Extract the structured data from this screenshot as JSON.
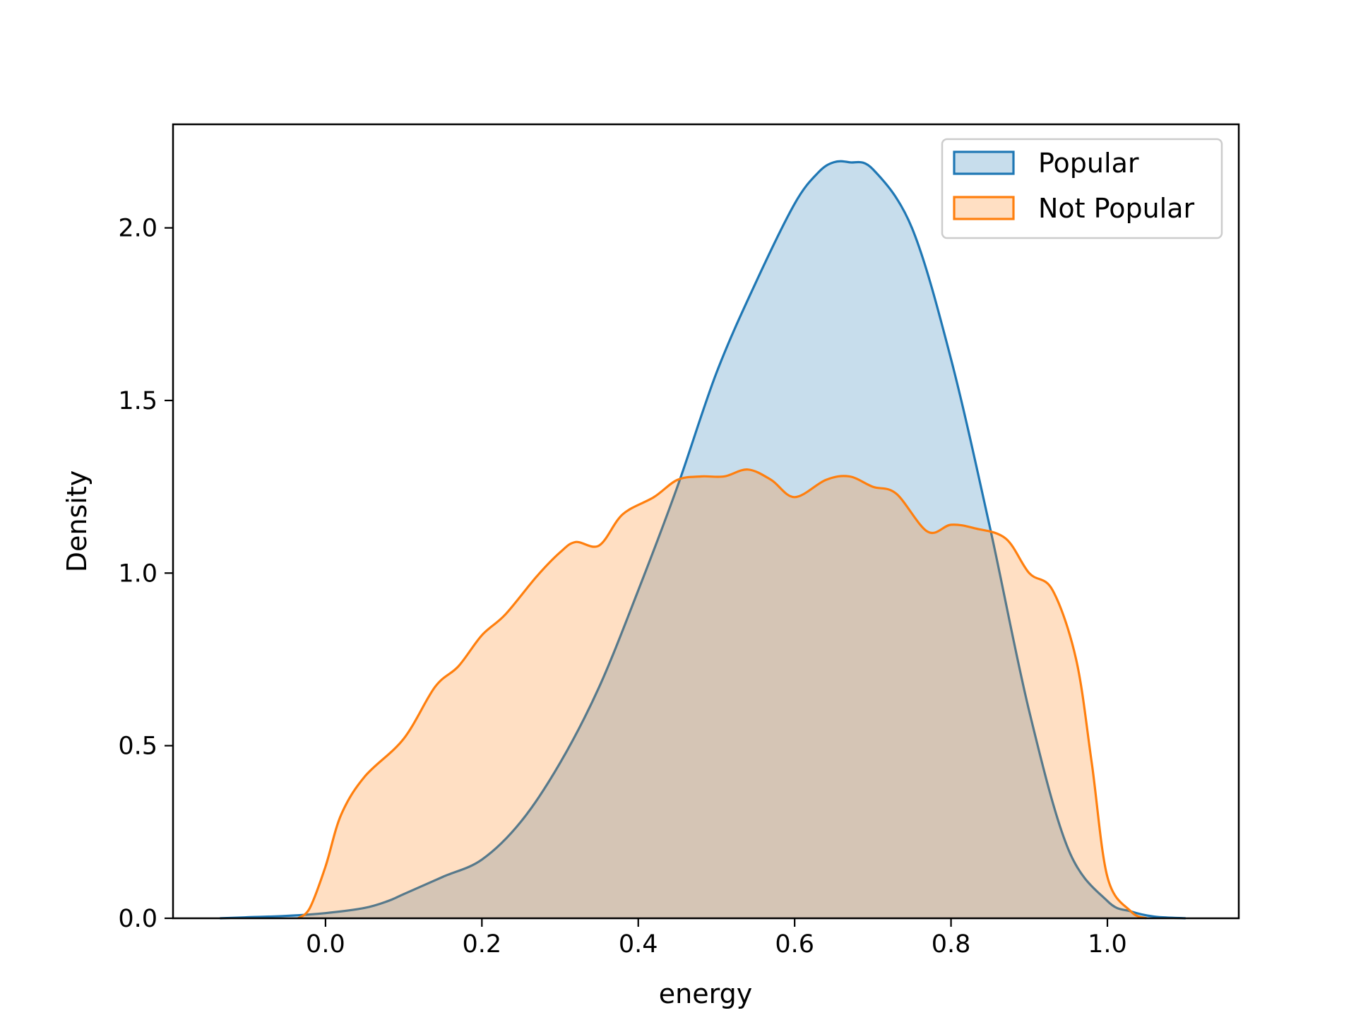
{
  "chart_data": {
    "type": "area",
    "title": "",
    "xlabel": "energy",
    "ylabel": "Density",
    "xlim": [
      -0.195,
      1.168
    ],
    "ylim": [
      0.0,
      2.3
    ],
    "xticks": [
      {
        "value": 0.0,
        "label": "0.0"
      },
      {
        "value": 0.2,
        "label": "0.2"
      },
      {
        "value": 0.4,
        "label": "0.4"
      },
      {
        "value": 0.6,
        "label": "0.6"
      },
      {
        "value": 0.8,
        "label": "0.8"
      },
      {
        "value": 1.0,
        "label": "1.0"
      }
    ],
    "yticks": [
      {
        "value": 0.0,
        "label": "0.0"
      },
      {
        "value": 0.5,
        "label": "0.5"
      },
      {
        "value": 1.0,
        "label": "1.0"
      },
      {
        "value": 1.5,
        "label": "1.5"
      },
      {
        "value": 2.0,
        "label": "2.0"
      }
    ],
    "grid": false,
    "legend": {
      "position": "top-right",
      "entries": [
        {
          "name": "Popular",
          "color": "#1f77b4"
        },
        {
          "name": "Not Popular",
          "color": "#ff7f0e"
        }
      ]
    },
    "series": [
      {
        "name": "Popular",
        "color": "#1f77b4",
        "fill_opacity": 0.25,
        "x": [
          -0.135,
          -0.1,
          -0.05,
          0.0,
          0.05,
          0.08,
          0.1,
          0.15,
          0.2,
          0.25,
          0.3,
          0.35,
          0.4,
          0.45,
          0.5,
          0.55,
          0.6,
          0.63,
          0.65,
          0.67,
          0.7,
          0.75,
          0.8,
          0.85,
          0.9,
          0.95,
          1.0,
          1.03,
          1.06,
          1.1
        ],
        "y": [
          0.0,
          0.003,
          0.007,
          0.015,
          0.03,
          0.05,
          0.07,
          0.12,
          0.17,
          0.28,
          0.45,
          0.67,
          0.95,
          1.25,
          1.58,
          1.84,
          2.07,
          2.16,
          2.19,
          2.19,
          2.17,
          2.0,
          1.62,
          1.13,
          0.6,
          0.2,
          0.05,
          0.02,
          0.005,
          0.0
        ]
      },
      {
        "name": "Not Popular",
        "color": "#ff7f0e",
        "fill_opacity": 0.25,
        "x": [
          -0.035,
          -0.02,
          0.0,
          0.02,
          0.05,
          0.1,
          0.14,
          0.17,
          0.2,
          0.23,
          0.27,
          0.3,
          0.32,
          0.35,
          0.38,
          0.42,
          0.45,
          0.48,
          0.51,
          0.54,
          0.57,
          0.6,
          0.64,
          0.67,
          0.7,
          0.73,
          0.77,
          0.8,
          0.83,
          0.87,
          0.9,
          0.93,
          0.96,
          0.98,
          1.0,
          1.03,
          1.05
        ],
        "y": [
          0.0,
          0.03,
          0.15,
          0.3,
          0.41,
          0.52,
          0.67,
          0.73,
          0.82,
          0.88,
          0.99,
          1.06,
          1.09,
          1.08,
          1.17,
          1.22,
          1.27,
          1.28,
          1.28,
          1.3,
          1.27,
          1.22,
          1.27,
          1.28,
          1.25,
          1.23,
          1.12,
          1.14,
          1.13,
          1.1,
          1.0,
          0.95,
          0.75,
          0.45,
          0.12,
          0.02,
          0.0
        ]
      }
    ]
  }
}
